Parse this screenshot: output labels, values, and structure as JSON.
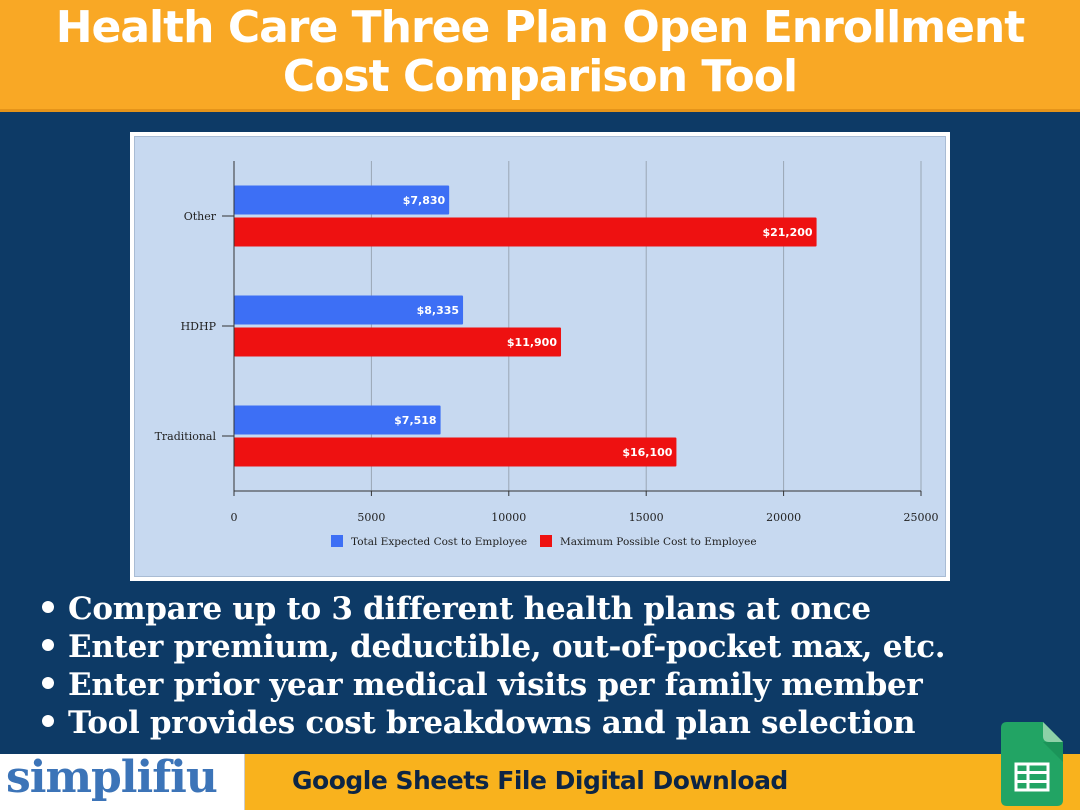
{
  "header": {
    "title_line1": "Health Care Three Plan Open Enrollment",
    "title_line2": "Cost Comparison Tool"
  },
  "colors": {
    "banner": "#f9a825",
    "background": "#0d3a66",
    "plot_background": "#c7d9f0",
    "series_blue": "#3d6ff5",
    "series_red": "#ee1111",
    "brand": "#3c74b8",
    "sheets_green": "#22a464"
  },
  "chart_data": {
    "type": "bar",
    "orientation": "horizontal",
    "categories": [
      "Other",
      "HDHP",
      "Traditional"
    ],
    "series": [
      {
        "name": "Total Expected Cost to Employee",
        "values": [
          7830,
          8335,
          7518
        ],
        "labels": [
          "$7,830",
          "$8,335",
          "$7,518"
        ],
        "color": "#3d6ff5"
      },
      {
        "name": "Maximum Possible Cost to Employee",
        "values": [
          21200,
          11900,
          16100
        ],
        "labels": [
          "$21,200",
          "$11,900",
          "$16,100"
        ],
        "color": "#ee1111"
      }
    ],
    "x_ticks": [
      0,
      5000,
      10000,
      15000,
      20000,
      25000
    ],
    "xlim": [
      0,
      25000
    ],
    "grid": true,
    "legend_position": "bottom"
  },
  "bullets": [
    "Compare up to 3 different health plans at once",
    "Enter premium, deductible, out-of-pocket max, etc.",
    "Enter prior year medical visits per family member",
    "Tool provides cost breakdowns and plan selection"
  ],
  "footer": {
    "brand": "simplifiu",
    "tagline": "Google Sheets File Digital Download",
    "icon": "google-sheets-icon"
  }
}
